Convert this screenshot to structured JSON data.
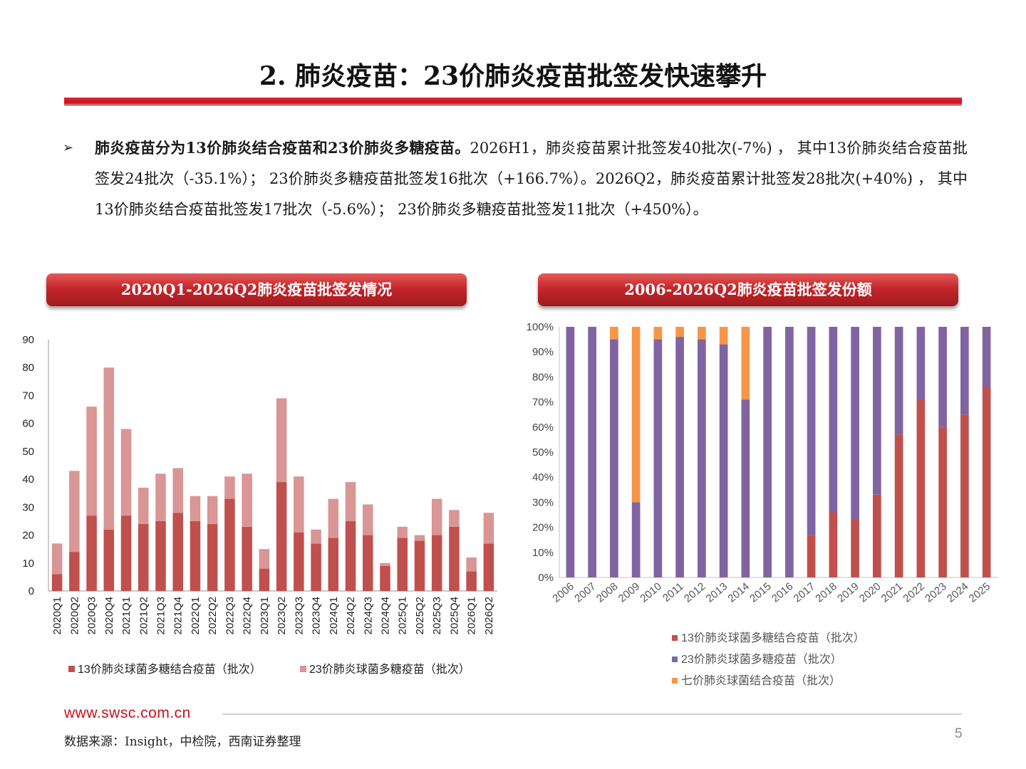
{
  "slide": {
    "title": "2. 肺炎疫苗：23价肺炎疫苗批签发快速攀升",
    "bullet_bold": "肺炎疫苗分为13价肺炎结合疫苗和23价肺炎多糖疫苗。",
    "bullet_rest": "2026H1，肺炎疫苗累计批签发40批次(-7%) ， 其中13价肺炎结合疫苗批签发24批次（-35.1%）； 23价肺炎多糖疫苗批签发16批次（+166.7%）。2026Q2，肺炎疫苗累计批签发28批次(+40%) ， 其中13价肺炎结合疫苗批签发17批次（-5.6%）； 23价肺炎多糖疫苗批签发11批次（+450%）。",
    "left_chart_header": "2020Q1-2026Q2肺炎疫苗批签发情况",
    "right_chart_header": "2006-2026Q2肺炎疫苗批签发份额",
    "footer_url": "www.swsc.com.cn",
    "footer_source": "数据来源：Insight，中检院，西南证券整理",
    "page_number": "5"
  },
  "colors": {
    "accent_red": "#c4141f",
    "pcv13": "#c0504d",
    "ppv23_light": "#d99694",
    "ppv23_purple": "#8064a2",
    "pcv7_orange": "#f79646"
  },
  "chart_data": [
    {
      "type": "bar",
      "stacked": true,
      "categories": [
        "2020Q1",
        "2020Q2",
        "2020Q3",
        "2020Q4",
        "2021Q1",
        "2021Q2",
        "2021Q3",
        "2021Q4",
        "2022Q1",
        "2022Q2",
        "2022Q3",
        "2022Q4",
        "2023Q1",
        "2023Q2",
        "2023Q3",
        "2023Q4",
        "2024Q1",
        "2024Q2",
        "2024Q3",
        "2024Q4",
        "2025Q1",
        "2025Q2",
        "2025Q3",
        "2025Q4",
        "2026Q1",
        "2026Q2"
      ],
      "series": [
        {
          "name": "13价肺炎球菌多糖结合疫苗（批次）",
          "color": "#c0504d",
          "values": [
            6,
            14,
            27,
            22,
            27,
            24,
            25,
            28,
            25,
            24,
            33,
            23,
            8,
            39,
            21,
            17,
            19,
            25,
            20,
            9,
            19,
            18,
            20,
            23,
            7,
            17
          ]
        },
        {
          "name": "23价肺炎球菌多糖疫苗（批次）",
          "color": "#d99694",
          "values": [
            11,
            29,
            39,
            58,
            31,
            13,
            17,
            16,
            9,
            10,
            8,
            19,
            7,
            30,
            20,
            5,
            14,
            14,
            11,
            1,
            4,
            2,
            13,
            6,
            5,
            11
          ]
        }
      ],
      "ylim": [
        0,
        90
      ],
      "yticks": [
        0,
        10,
        20,
        30,
        40,
        50,
        60,
        70,
        80,
        90
      ],
      "legend": "bottom"
    },
    {
      "type": "bar",
      "stacked": true,
      "percent": true,
      "categories": [
        "2006",
        "2007",
        "2008",
        "2009",
        "2010",
        "2011",
        "2012",
        "2013",
        "2014",
        "2015",
        "2016",
        "2017",
        "2018",
        "2019",
        "2020",
        "2021",
        "2022",
        "2023",
        "2024",
        "2025"
      ],
      "series": [
        {
          "name": "13价肺炎球菌多糖结合疫苗（批次）",
          "color": "#c0504d",
          "values": [
            0,
            0,
            0,
            0,
            0,
            0,
            0,
            0,
            0,
            0,
            0,
            17,
            26,
            23,
            33,
            57,
            71,
            60,
            65,
            76
          ]
        },
        {
          "name": "23价肺炎球菌多糖疫苗（批次）",
          "color": "#8064a2",
          "values": [
            100,
            100,
            95,
            30,
            95,
            96,
            95,
            93,
            71,
            100,
            100,
            83,
            74,
            77,
            67,
            43,
            29,
            40,
            35,
            24
          ]
        },
        {
          "name": "七价肺炎球菌结合疫苗（批次）",
          "color": "#f79646",
          "values": [
            0,
            0,
            5,
            70,
            5,
            4,
            5,
            7,
            29,
            0,
            0,
            0,
            0,
            0,
            0,
            0,
            0,
            0,
            0,
            0
          ]
        }
      ],
      "ylim": [
        0,
        100
      ],
      "yticks": [
        "0%",
        "10%",
        "20%",
        "30%",
        "40%",
        "50%",
        "60%",
        "70%",
        "80%",
        "90%",
        "100%"
      ],
      "legend": "bottom"
    }
  ]
}
